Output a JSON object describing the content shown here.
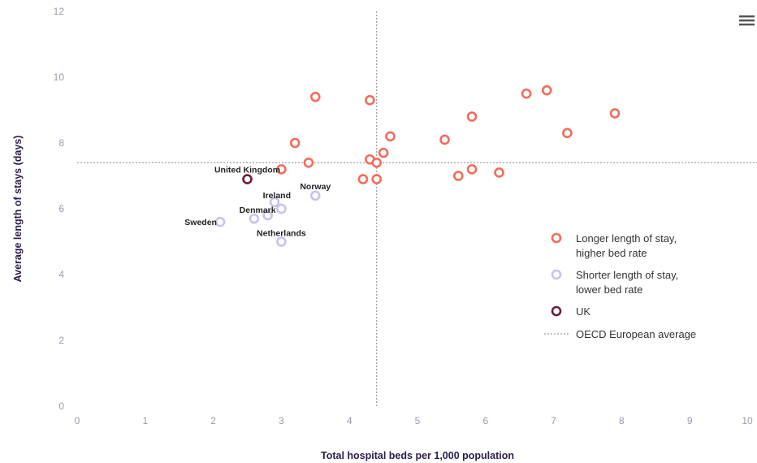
{
  "chart_data": {
    "type": "scatter",
    "xlabel": "Total hospital beds per 1,000 population",
    "ylabel": "Average length of stays (days)",
    "xlim": [
      0,
      10
    ],
    "ylim": [
      0,
      12
    ],
    "x_ticks": [
      0,
      1,
      2,
      3,
      4,
      5,
      6,
      7,
      8,
      9,
      10
    ],
    "y_ticks": [
      0,
      2,
      4,
      6,
      8,
      10,
      12
    ],
    "grid": false,
    "legend_position": "right",
    "reference_lines": {
      "x": 4.4,
      "y": 7.4,
      "label": "OECD European average"
    },
    "series": [
      {
        "name": "Longer length of stay, higher bed rate",
        "color": "#f36b5b",
        "points": [
          {
            "x": 3.0,
            "y": 7.2
          },
          {
            "x": 3.2,
            "y": 8.0
          },
          {
            "x": 3.4,
            "y": 7.4
          },
          {
            "x": 3.5,
            "y": 9.4
          },
          {
            "x": 4.2,
            "y": 6.9
          },
          {
            "x": 4.3,
            "y": 9.3
          },
          {
            "x": 4.3,
            "y": 7.5
          },
          {
            "x": 4.4,
            "y": 7.4
          },
          {
            "x": 4.4,
            "y": 6.9
          },
          {
            "x": 4.5,
            "y": 7.7
          },
          {
            "x": 4.6,
            "y": 8.2
          },
          {
            "x": 5.4,
            "y": 8.1
          },
          {
            "x": 5.6,
            "y": 7.0
          },
          {
            "x": 5.8,
            "y": 8.8
          },
          {
            "x": 5.8,
            "y": 7.2
          },
          {
            "x": 6.2,
            "y": 7.1
          },
          {
            "x": 6.6,
            "y": 9.5
          },
          {
            "x": 6.9,
            "y": 9.6
          },
          {
            "x": 7.2,
            "y": 8.3
          },
          {
            "x": 7.9,
            "y": 8.9
          }
        ]
      },
      {
        "name": "Shorter length of stay, lower bed rate",
        "color": "#c7c2f2",
        "points": [
          {
            "x": 2.1,
            "y": 5.6,
            "label": "Sweden"
          },
          {
            "x": 2.6,
            "y": 5.7
          },
          {
            "x": 2.8,
            "y": 5.8,
            "label": "Denmark"
          },
          {
            "x": 2.9,
            "y": 6.2,
            "label": "Ireland"
          },
          {
            "x": 3.0,
            "y": 6.0
          },
          {
            "x": 3.0,
            "y": 5.0,
            "label": "Netherlands"
          },
          {
            "x": 3.5,
            "y": 6.4,
            "label": "Norway"
          }
        ]
      },
      {
        "name": "UK",
        "color": "#6b1d3a",
        "points": [
          {
            "x": 2.5,
            "y": 6.9,
            "label": "United Kingdom"
          }
        ]
      }
    ],
    "legend": [
      {
        "label_lines": [
          "Longer length of stay,",
          "higher bed rate"
        ],
        "marker": "circle",
        "color": "#f36b5b"
      },
      {
        "label_lines": [
          "Shorter length of stay,",
          "lower bed rate"
        ],
        "marker": "circle",
        "color": "#c7c2f2"
      },
      {
        "label_lines": [
          "UK"
        ],
        "marker": "circle",
        "color": "#6b1d3a"
      },
      {
        "label_lines": [
          "OECD European average"
        ],
        "marker": "dashed-line",
        "color": "#888888"
      }
    ]
  },
  "toolbar": {
    "menu_icon": "hamburger-menu-icon"
  }
}
